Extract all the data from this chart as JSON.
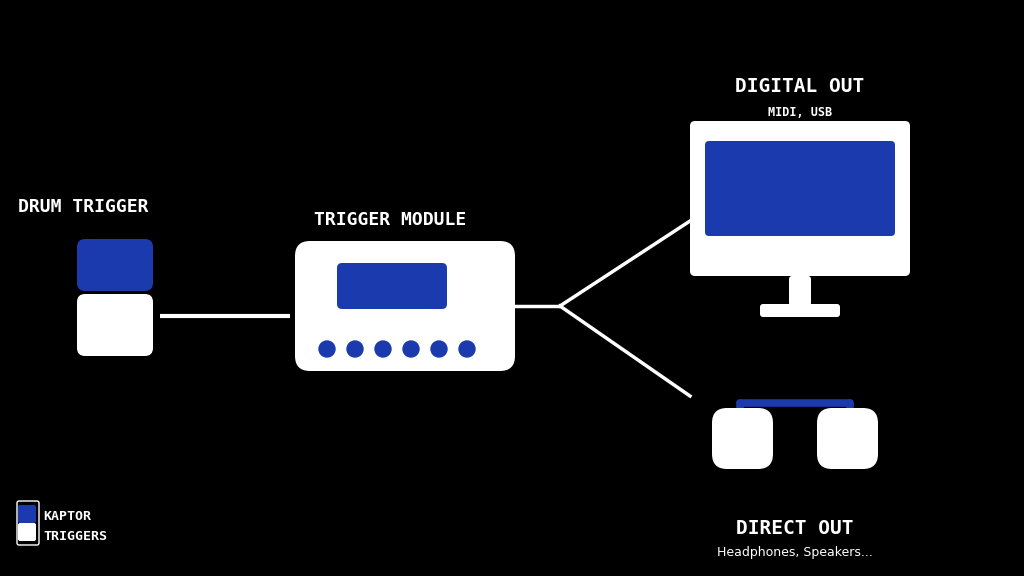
{
  "bg_color": "#000000",
  "blue_color": "#1a3aad",
  "white_color": "#ffffff",
  "title_font_size": 13,
  "label_font_size": 9,
  "font_color": "#ffffff",
  "drum_trigger_label": "DRUM TRIGGER",
  "trigger_module_label": "TRIGGER MODULE",
  "digital_out_label": "DIGITAL OUT",
  "digital_out_sub": "MIDI, USB",
  "direct_out_label": "DIRECT OUT",
  "direct_out_sub": "Headphones, Speakers...",
  "kaptor_line1": "KAPTOR",
  "kaptor_line2": "TRIGGERS"
}
